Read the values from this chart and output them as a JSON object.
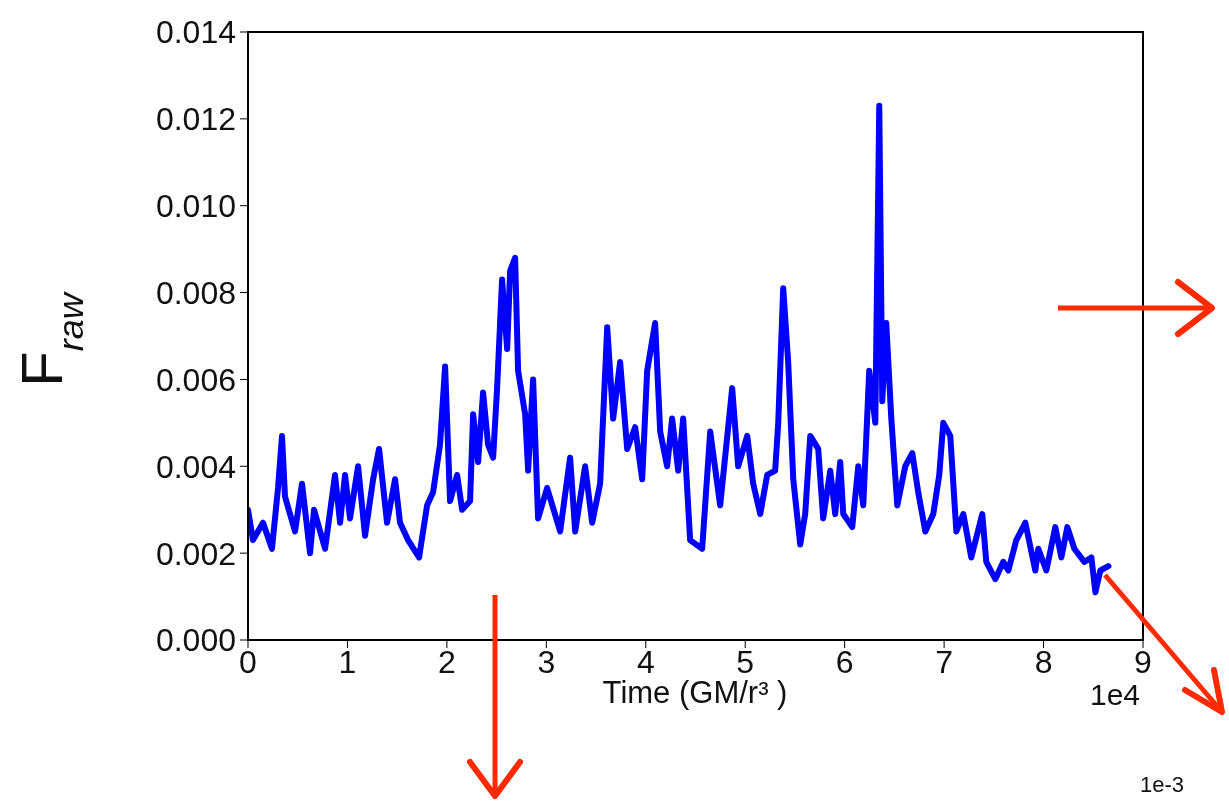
{
  "chart_data": {
    "type": "line",
    "xlabel": "Time (GM/r³ )",
    "ylabel": "F$_{raw}$",
    "xlim": [
      0,
      9
    ],
    "ylim": [
      0,
      0.014
    ],
    "xticks": [
      0,
      1,
      2,
      3,
      4,
      5,
      6,
      7,
      8,
      9
    ],
    "yticks": [
      {
        "value": 0,
        "label": "0.000"
      },
      {
        "value": 0.002,
        "label": "0.002"
      },
      {
        "value": 0.004,
        "label": "0.004"
      },
      {
        "value": 0.006,
        "label": "0.006"
      },
      {
        "value": 0.008,
        "label": "0.008"
      },
      {
        "value": 0.01,
        "label": "0.010"
      },
      {
        "value": 0.012,
        "label": "0.012"
      },
      {
        "value": 0.014,
        "label": "0.014"
      }
    ],
    "grid": false,
    "marker": "none",
    "line_style": "solid",
    "annotations": [
      "1e4",
      "1e-3"
    ],
    "series": [
      {
        "color": "#0000ff",
        "x": [
          0,
          0.05,
          0.151,
          0.241,
          0.302,
          0.342,
          0.372,
          0.473,
          0.543,
          0.624,
          0.664,
          0.775,
          0.875,
          0.926,
          0.976,
          1.026,
          1.107,
          1.177,
          1.258,
          1.318,
          1.398,
          1.479,
          1.529,
          1.61,
          1.72,
          1.801,
          1.861,
          1.931,
          1.982,
          2.032,
          2.103,
          2.153,
          2.233,
          2.264,
          2.314,
          2.364,
          2.414,
          2.465,
          2.505,
          2.555,
          2.606,
          2.636,
          2.686,
          2.716,
          2.787,
          2.817,
          2.867,
          2.917,
          3.008,
          3.139,
          3.239,
          3.29,
          3.39,
          3.461,
          3.541,
          3.612,
          3.672,
          3.742,
          3.813,
          3.893,
          3.964,
          4.014,
          4.094,
          4.145,
          4.215,
          4.265,
          4.326,
          4.376,
          4.446,
          4.567,
          4.648,
          4.748,
          4.869,
          4.929,
          5.02,
          5.08,
          5.151,
          5.221,
          5.301,
          5.332,
          5.382,
          5.432,
          5.483,
          5.553,
          5.603,
          5.654,
          5.734,
          5.784,
          5.855,
          5.905,
          5.955,
          5.986,
          6.076,
          6.137,
          6.187,
          6.247,
          6.308,
          6.348,
          6.378,
          6.418,
          6.469,
          6.529,
          6.609,
          6.68,
          6.74,
          6.811,
          6.891,
          6.951,
          6.992,
          7.062,
          7.123,
          7.193,
          7.273,
          7.384,
          7.424,
          7.515,
          7.595,
          7.646,
          7.726,
          7.817,
          7.917,
          7.947,
          8.028,
          8.118,
          8.179,
          8.239,
          8.31,
          8.41,
          8.481,
          8.521,
          8.571,
          8.652
        ],
        "values": [
          0.003,
          0.0023,
          0.0027,
          0.0021,
          0.0035,
          0.0047,
          0.0033,
          0.0025,
          0.0036,
          0.002,
          0.003,
          0.0021,
          0.0038,
          0.0027,
          0.0038,
          0.0028,
          0.004,
          0.0024,
          0.0037,
          0.0044,
          0.0027,
          0.0037,
          0.0027,
          0.0023,
          0.0019,
          0.0031,
          0.0034,
          0.0045,
          0.0063,
          0.0032,
          0.0038,
          0.003,
          0.0032,
          0.0052,
          0.0041,
          0.0057,
          0.0045,
          0.0042,
          0.0058,
          0.0083,
          0.0067,
          0.0085,
          0.0088,
          0.0062,
          0.0052,
          0.0039,
          0.006,
          0.0028,
          0.0035,
          0.0025,
          0.0042,
          0.0025,
          0.004,
          0.0027,
          0.0036,
          0.0072,
          0.0051,
          0.0064,
          0.0044,
          0.0049,
          0.0037,
          0.0062,
          0.0073,
          0.0048,
          0.004,
          0.0051,
          0.0039,
          0.0051,
          0.0023,
          0.0021,
          0.0048,
          0.0031,
          0.0058,
          0.004,
          0.0047,
          0.0036,
          0.0029,
          0.0038,
          0.0039,
          0.005,
          0.0081,
          0.0064,
          0.0037,
          0.0022,
          0.0029,
          0.0047,
          0.0044,
          0.0028,
          0.0039,
          0.0029,
          0.0041,
          0.0029,
          0.0026,
          0.004,
          0.0031,
          0.0062,
          0.005,
          0.0123,
          0.0055,
          0.0073,
          0.0051,
          0.0031,
          0.004,
          0.0043,
          0.0034,
          0.0025,
          0.0029,
          0.0038,
          0.005,
          0.0047,
          0.0025,
          0.0029,
          0.0019,
          0.0029,
          0.0018,
          0.0014,
          0.0018,
          0.0016,
          0.0023,
          0.0027,
          0.0016,
          0.0021,
          0.0016,
          0.0026,
          0.0019,
          0.0026,
          0.0021,
          0.0018,
          0.0019,
          0.0011,
          0.0016,
          0.0017
        ]
      }
    ]
  }
}
